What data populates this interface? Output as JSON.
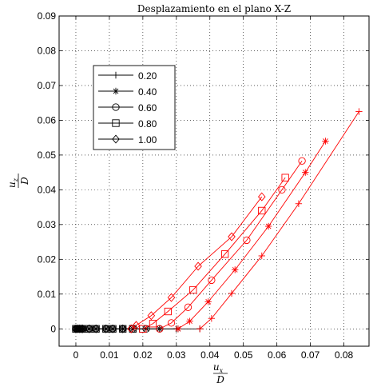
{
  "chart_data": {
    "type": "line",
    "title": "Desplazamiento en el plano X-Z",
    "xlabel": {
      "num": "u",
      "num_sub": "x",
      "den": "D"
    },
    "ylabel": {
      "num": "u",
      "num_sub": "z",
      "den": "D"
    },
    "xlim": [
      -0.005,
      0.0875
    ],
    "ylim": [
      -0.005,
      0.09
    ],
    "xticks": [
      0,
      0.01,
      0.02,
      0.03,
      0.04,
      0.05,
      0.06,
      0.07,
      0.08
    ],
    "yticks": [
      0,
      0.01,
      0.02,
      0.03,
      0.04,
      0.05,
      0.06,
      0.07,
      0.08,
      0.09
    ],
    "grid": true,
    "legend_position": "upper-left",
    "colors": {
      "red": "#ff0000",
      "black": "#000000"
    },
    "series": [
      {
        "name": "0.20",
        "marker": "plus",
        "zero_x": [
          0,
          0.0005,
          0.001,
          0.0015,
          0.002,
          0.004,
          0.006,
          0.009,
          0.011,
          0.014,
          0.017,
          0.021,
          0.025,
          0.03,
          0.037
        ],
        "x": [
          0.037,
          0.0405,
          0.0465,
          0.0555,
          0.0665,
          0.0845
        ],
        "y": [
          0.0,
          0.003,
          0.0102,
          0.021,
          0.036,
          0.0625
        ]
      },
      {
        "name": "0.40",
        "marker": "star",
        "zero_x": [
          0,
          0.0005,
          0.001,
          0.0015,
          0.002,
          0.004,
          0.006,
          0.009,
          0.011,
          0.014,
          0.017,
          0.021,
          0.025,
          0.0305
        ],
        "x": [
          0.0305,
          0.034,
          0.0395,
          0.0475,
          0.0575,
          0.0685,
          0.0745
        ],
        "y": [
          0.0,
          0.0022,
          0.0078,
          0.017,
          0.0295,
          0.045,
          0.054
        ]
      },
      {
        "name": "0.60",
        "marker": "circle",
        "zero_x": [
          0,
          0.0005,
          0.001,
          0.0015,
          0.002,
          0.004,
          0.006,
          0.009,
          0.011,
          0.014,
          0.017,
          0.021,
          0.025
        ],
        "x": [
          0.025,
          0.0285,
          0.0335,
          0.0405,
          0.051,
          0.0615,
          0.0675
        ],
        "y": [
          0.0,
          0.0017,
          0.0062,
          0.014,
          0.0255,
          0.04,
          0.0483
        ]
      },
      {
        "name": "0.80",
        "marker": "square",
        "zero_x": [
          0,
          0.0005,
          0.001,
          0.0015,
          0.002,
          0.004,
          0.006,
          0.009,
          0.011,
          0.014,
          0.017,
          0.02
        ],
        "x": [
          0.02,
          0.023,
          0.0275,
          0.035,
          0.0445,
          0.0555,
          0.0625
        ],
        "y": [
          0.0,
          0.0015,
          0.005,
          0.0112,
          0.0215,
          0.034,
          0.0435
        ]
      },
      {
        "name": "1.00",
        "marker": "diamond",
        "zero_x": [
          0,
          0.0005,
          0.001,
          0.0015,
          0.002,
          0.004,
          0.006,
          0.009,
          0.011,
          0.014,
          0.0165
        ],
        "x": [
          0.0165,
          0.018,
          0.0225,
          0.0285,
          0.0365,
          0.0465,
          0.0555
        ],
        "y": [
          0.0,
          0.001,
          0.0038,
          0.009,
          0.018,
          0.0265,
          0.038
        ]
      }
    ]
  }
}
